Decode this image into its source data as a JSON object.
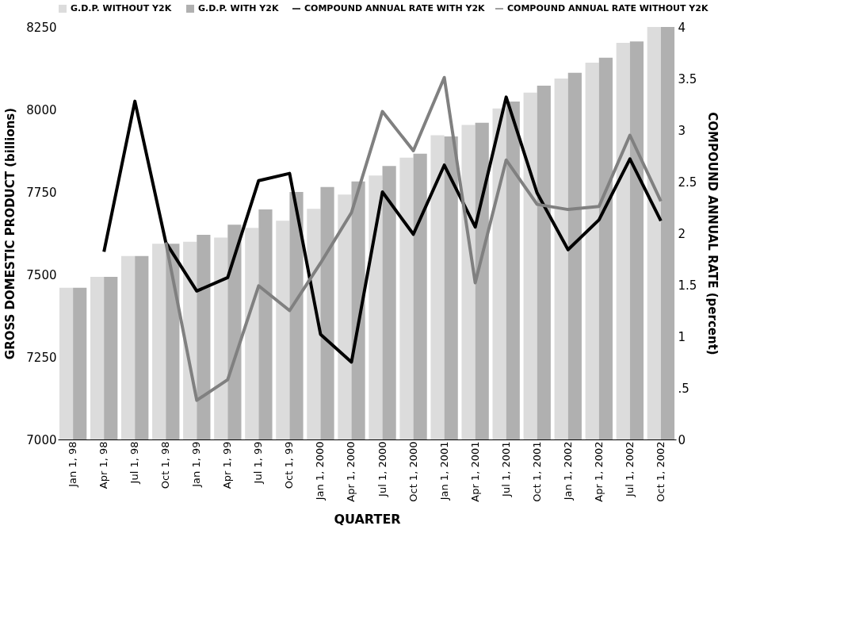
{
  "chart_data": {
    "type": "bar",
    "xlabel": "QUARTER",
    "ylabel": "GROSS DOMESTIC PRODUCT (billions)",
    "y2label": "COMPOUND ANNUAL RATE (percent)",
    "categories": [
      "Jan 1, 98",
      "Apr 1, 98",
      "Jul 1, 98",
      "Oct 1, 98",
      "Jan 1, 99",
      "Apr 1, 99",
      "Jul 1, 99",
      "Oct 1, 99",
      "Jan 1, 2000",
      "Apr 1, 2000",
      "Jul 1, 2000",
      "Oct 1, 2000",
      "Jan 1, 2001",
      "Apr 1, 2001",
      "Jul 1, 2001",
      "Oct 1, 2001",
      "Jan 1, 2002",
      "Apr 1, 2002",
      "Jul 1, 2002",
      "Oct 1, 2002"
    ],
    "series": [
      {
        "name": "G.D.P.  WITHOUT  Y2K",
        "color": "#dcdcdc",
        "values": [
          7460,
          7493,
          7556,
          7593,
          7599,
          7612,
          7641,
          7663,
          7699,
          7742,
          7800,
          7854,
          7922,
          7953,
          8003,
          8051,
          8094,
          8142,
          8202,
          8250
        ]
      },
      {
        "name": "G.D.P.  WITH  Y2K",
        "color": "#b0b0b0",
        "values": [
          7460,
          7493,
          7556,
          7593,
          7620,
          7651,
          7697,
          7750,
          7765,
          7782,
          7829,
          7866,
          7918,
          7960,
          8024,
          8072,
          8111,
          8157,
          8206,
          8250
        ]
      },
      {
        "name": "COMPOUND ANNUAL RATE WITH Y2K",
        "type": "line",
        "axis": "y2",
        "color": "#000000",
        "values": [
          null,
          1.82,
          3.28,
          1.91,
          1.44,
          1.57,
          2.51,
          2.58,
          1.02,
          0.75,
          2.4,
          1.99,
          2.66,
          2.06,
          3.32,
          2.39,
          1.84,
          2.13,
          2.72,
          2.12
        ]
      },
      {
        "name": "COMPOUND ANNUAL RATE WITHOUT Y2K",
        "type": "line",
        "axis": "y2",
        "color": "#808080",
        "values": [
          null,
          null,
          null,
          1.91,
          0.38,
          0.58,
          1.49,
          1.25,
          1.71,
          2.2,
          3.18,
          2.8,
          3.51,
          1.52,
          2.71,
          2.28,
          2.23,
          2.26,
          2.95,
          2.31
        ]
      }
    ],
    "ylim": [
      7000,
      8250
    ],
    "yticks": [
      7000,
      7250,
      7500,
      7750,
      8000,
      8250
    ],
    "y2lim": [
      0,
      4
    ],
    "y2ticks": [
      0,
      {
        "value": 0.5,
        "label": ".5"
      },
      1,
      1.5,
      2,
      2.5,
      3,
      3.5,
      4
    ],
    "grid": false,
    "legend": "top",
    "marker": "none",
    "line_style": "solid"
  }
}
